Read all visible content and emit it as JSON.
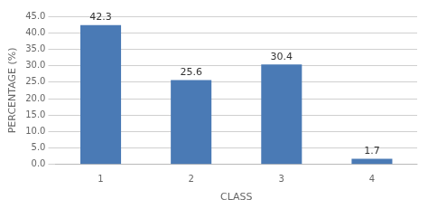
{
  "chart_data": {
    "type": "bar",
    "categories": [
      "1",
      "2",
      "3",
      "4"
    ],
    "values": [
      42.3,
      25.6,
      30.4,
      1.7
    ],
    "color": "#4a7ab5",
    "xlabel": "CLASS",
    "ylabel": "PERCENTAGE (%)",
    "ylim": [
      0,
      45
    ],
    "yticks": [
      {
        "value": 0.0,
        "label": "0.0"
      },
      {
        "value": 5.0,
        "label": "5.0"
      },
      {
        "value": 10.0,
        "label": "10.0"
      },
      {
        "value": 15.0,
        "label": "15.0"
      },
      {
        "value": 20.0,
        "label": "20.0"
      },
      {
        "value": 25.0,
        "label": "25.0"
      },
      {
        "value": 30.0,
        "label": "30.0"
      },
      {
        "value": 35.0,
        "label": "35.0"
      },
      {
        "value": 40.0,
        "label": "40.0"
      },
      {
        "value": 45.0,
        "label": "45.0"
      }
    ],
    "grid": true,
    "data_labels": true
  }
}
